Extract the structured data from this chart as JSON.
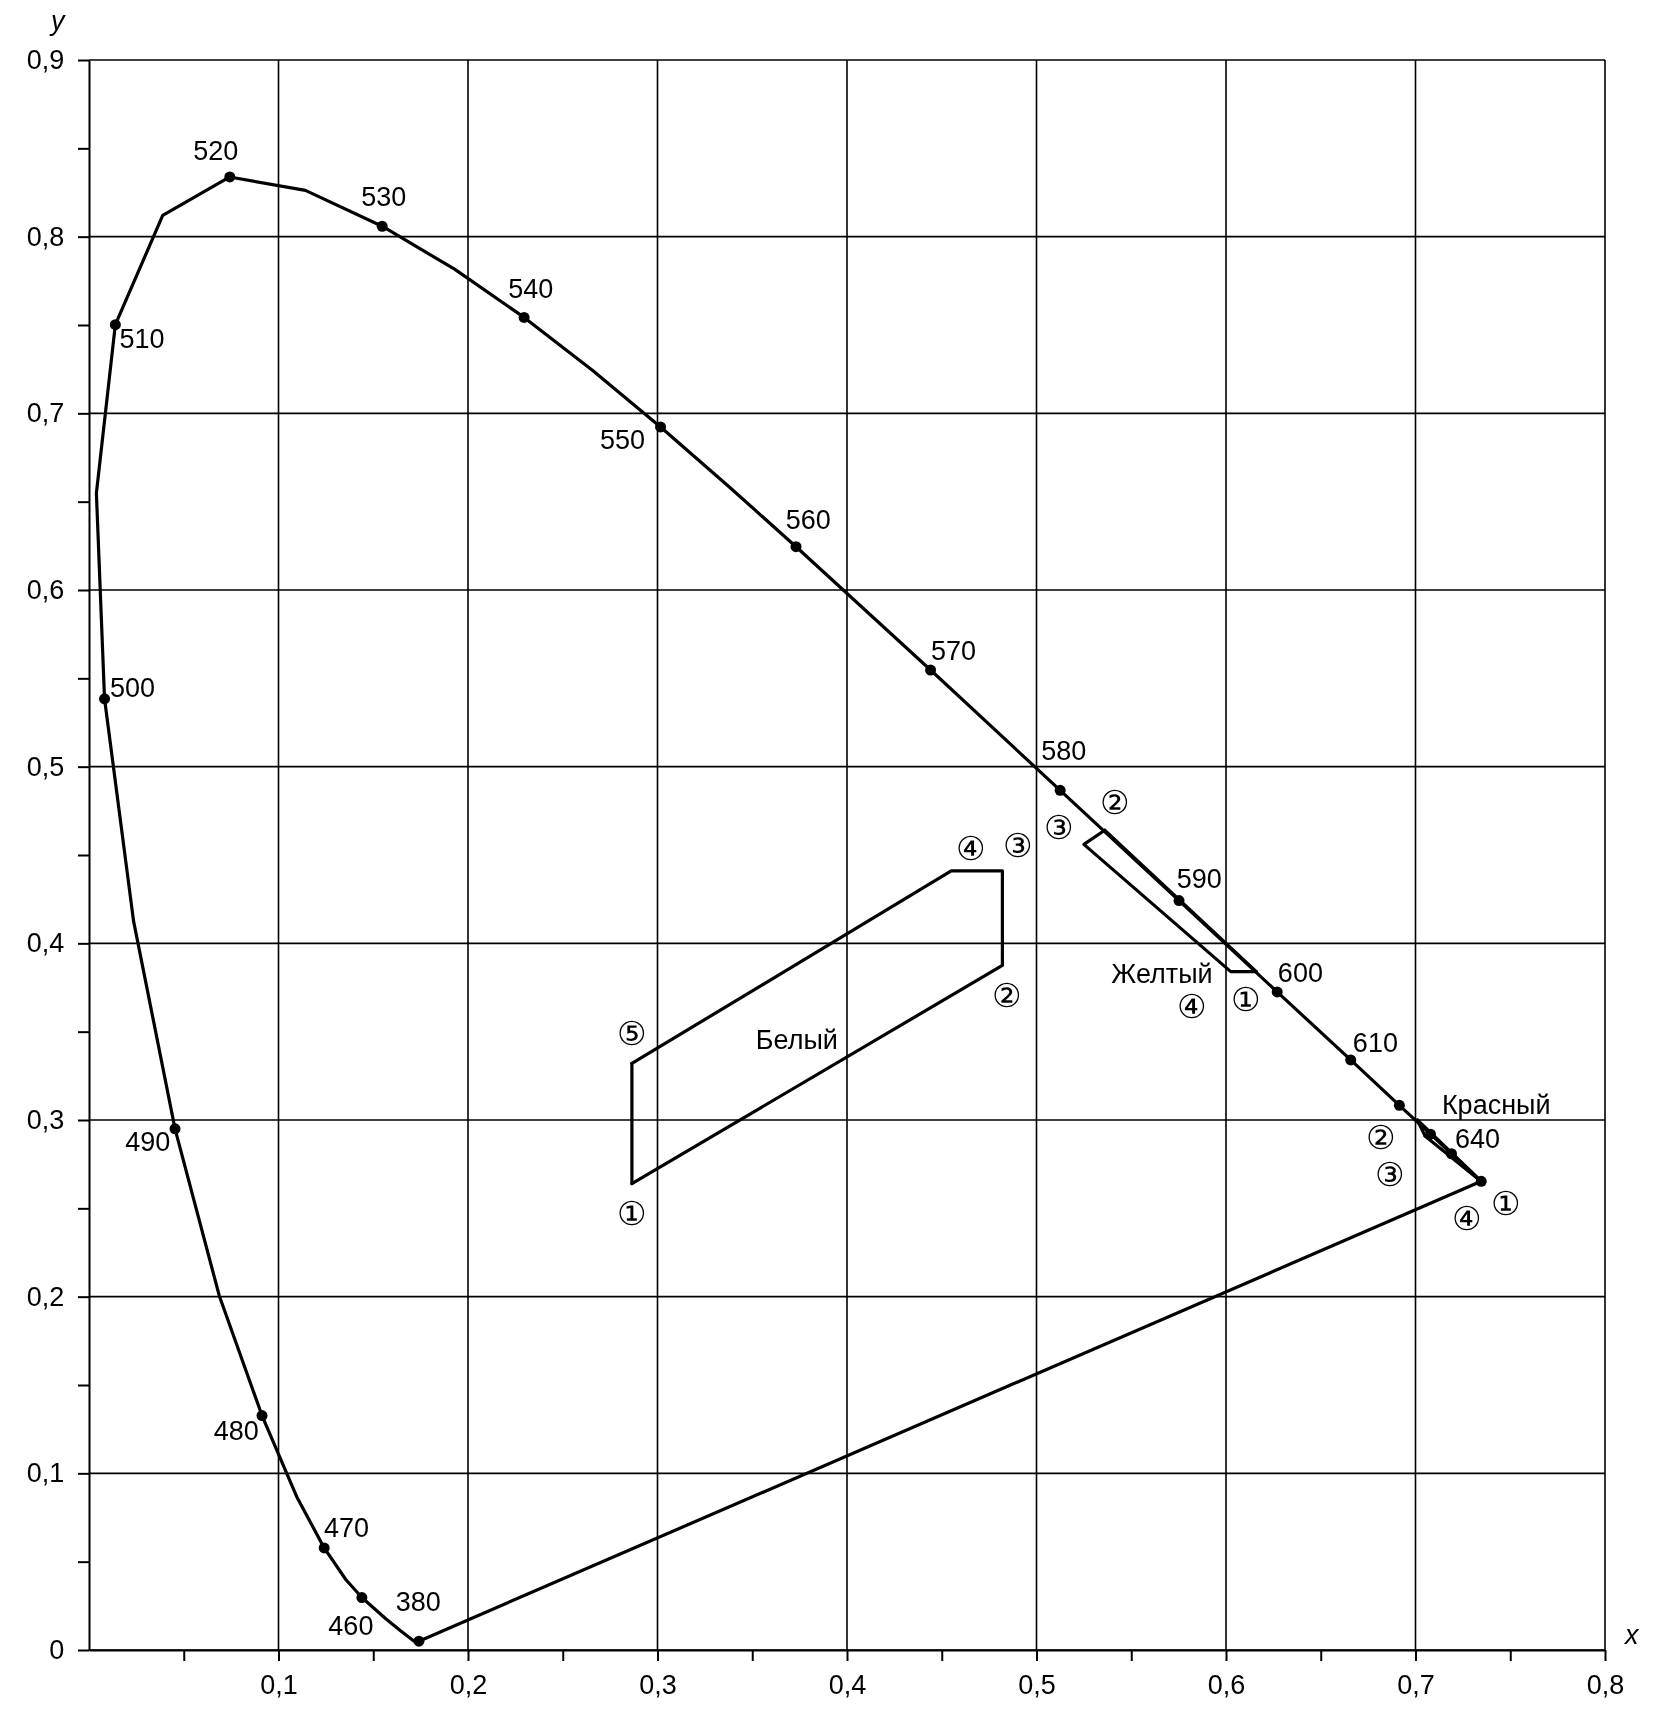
{
  "chart_data": {
    "type": "line",
    "xlabel": "x",
    "ylabel": "y",
    "xlim": [
      0,
      0.8
    ],
    "ylim": [
      0,
      0.9
    ],
    "xticks": [
      {
        "value": 0.05,
        "label": null
      },
      {
        "value": 0.1,
        "label": "0,1"
      },
      {
        "value": 0.15,
        "label": null
      },
      {
        "value": 0.2,
        "label": "0,2"
      },
      {
        "value": 0.25,
        "label": null
      },
      {
        "value": 0.3,
        "label": "0,3"
      },
      {
        "value": 0.35,
        "label": null
      },
      {
        "value": 0.4,
        "label": "0,4"
      },
      {
        "value": 0.45,
        "label": null
      },
      {
        "value": 0.5,
        "label": "0,5"
      },
      {
        "value": 0.55,
        "label": null
      },
      {
        "value": 0.6,
        "label": "0,6"
      },
      {
        "value": 0.65,
        "label": null
      },
      {
        "value": 0.7,
        "label": "0,7"
      },
      {
        "value": 0.75,
        "label": null
      },
      {
        "value": 0.8,
        "label": "0,8"
      }
    ],
    "yticks": [
      0,
      {
        "value": 0.05,
        "label": null
      },
      {
        "value": 0.1,
        "label": "0,1"
      },
      {
        "value": 0.15,
        "label": null
      },
      {
        "value": 0.2,
        "label": "0,2"
      },
      {
        "value": 0.25,
        "label": null
      },
      {
        "value": 0.3,
        "label": "0,3"
      },
      {
        "value": 0.35,
        "label": null
      },
      {
        "value": 0.4,
        "label": "0,4"
      },
      {
        "value": 0.45,
        "label": null
      },
      {
        "value": 0.5,
        "label": "0,5"
      },
      {
        "value": 0.55,
        "label": null
      },
      {
        "value": 0.6,
        "label": "0,6"
      },
      {
        "value": 0.65,
        "label": null
      },
      {
        "value": 0.7,
        "label": "0,7"
      },
      {
        "value": 0.75,
        "label": null
      },
      {
        "value": 0.8,
        "label": "0,8"
      },
      {
        "value": 0.85,
        "label": null
      },
      {
        "value": 0.9,
        "label": "0,9"
      }
    ],
    "grid": true,
    "legend": false,
    "series": [
      {
        "color": "#000000",
        "marker": "none",
        "line_style": "solid",
        "x": [
          0.1741,
          0.1714,
          0.1644,
          0.1566,
          0.144,
          0.1355,
          0.1241,
          0.1096,
          0.0913,
          0.0687,
          0.0454,
          0.0235,
          0.0082,
          0.0039,
          0.0139,
          0.0389,
          0.0743,
          0.1142,
          0.1547,
          0.1929,
          0.2296,
          0.2658,
          0.3016,
          0.3373,
          0.3731,
          0.4441,
          0.5125,
          0.5752,
          0.627,
          0.6658,
          0.6915,
          0.7079,
          0.719,
          0.73,
          0.7347
        ],
        "values": [
          0.005,
          0.0051,
          0.0109,
          0.0177,
          0.0297,
          0.0399,
          0.0578,
          0.0868,
          0.1327,
          0.2007,
          0.295,
          0.4127,
          0.5384,
          0.6548,
          0.7502,
          0.812,
          0.8338,
          0.8262,
          0.8059,
          0.7816,
          0.7543,
          0.7243,
          0.6923,
          0.6589,
          0.6245,
          0.5547,
          0.4866,
          0.4242,
          0.3725,
          0.334,
          0.3083,
          0.292,
          0.2809,
          0.27,
          0.2653
        ]
      },
      {
        "color": "#000000",
        "marker": "none",
        "line_style": "solid",
        "x": [
          0.1741,
          0.7347
        ],
        "values": [
          0.005,
          0.2653
        ]
      },
      {
        "type": "scatter",
        "color": "#000000",
        "marker": "circle",
        "x": [
          0.1741,
          0.144,
          0.1241,
          0.0913,
          0.0454,
          0.0082,
          0.0139,
          0.0743,
          0.1547,
          0.2296,
          0.3016,
          0.3731,
          0.4441,
          0.5125,
          0.5752,
          0.627,
          0.6658,
          0.6915,
          0.7079,
          0.719,
          0.7347
        ],
        "values": [
          0.005,
          0.0297,
          0.0578,
          0.1327,
          0.295,
          0.5384,
          0.7502,
          0.8338,
          0.8059,
          0.7543,
          0.6923,
          0.6245,
          0.5547,
          0.4866,
          0.4242,
          0.3725,
          0.334,
          0.3083,
          0.292,
          0.2809,
          0.2653
        ]
      },
      {
        "name": "Белый",
        "color": "#000000",
        "marker": "none",
        "line_style": "solid",
        "x": [
          0.2865,
          0.482,
          0.482,
          0.455,
          0.2865
        ],
        "values": [
          0.264,
          0.3875,
          0.441,
          0.441,
          0.332
        ]
      },
      {
        "color": "#000000",
        "marker": "none",
        "line_style": "solid",
        "x": [
          0.2865,
          0.2865
        ],
        "values": [
          0.332,
          0.264
        ]
      },
      {
        "name": "Желтый",
        "color": "#000000",
        "marker": "none",
        "line_style": "solid",
        "x": [
          0.536,
          0.525,
          0.6025,
          0.616
        ],
        "values": [
          0.464,
          0.456,
          0.384,
          0.384
        ]
      },
      {
        "color": "#000000",
        "marker": "none",
        "line_style": "solid",
        "x": [
          0.616,
          0.536
        ],
        "values": [
          0.384,
          0.464
        ]
      },
      {
        "name": "Красный",
        "color": "#000000",
        "marker": "none",
        "line_style": "solid",
        "x": [
          0.701,
          0.736,
          0.705
        ],
        "values": [
          0.3,
          0.264,
          0.291
        ]
      },
      {
        "color": "#000000",
        "marker": "none",
        "line_style": "solid",
        "x": [
          0.705,
          0.701
        ],
        "values": [
          0.291,
          0.3
        ]
      }
    ],
    "annotations": [
      {
        "text": "380",
        "x": 0.1741,
        "y": 0.005
      },
      {
        "text": "460",
        "x": 0.144,
        "y": 0.0297
      },
      {
        "text": "470",
        "x": 0.1241,
        "y": 0.0578
      },
      {
        "text": "480",
        "x": 0.0913,
        "y": 0.1327
      },
      {
        "text": "490",
        "x": 0.0454,
        "y": 0.295
      },
      {
        "text": "500",
        "x": 0.0082,
        "y": 0.5384
      },
      {
        "text": "510",
        "x": 0.0139,
        "y": 0.7502
      },
      {
        "text": "520",
        "x": 0.0743,
        "y": 0.8338
      },
      {
        "text": "530",
        "x": 0.1547,
        "y": 0.8059
      },
      {
        "text": "540",
        "x": 0.2296,
        "y": 0.7543
      },
      {
        "text": "550",
        "x": 0.3016,
        "y": 0.6923
      },
      {
        "text": "560",
        "x": 0.3731,
        "y": 0.6245
      },
      {
        "text": "570",
        "x": 0.4441,
        "y": 0.5547
      },
      {
        "text": "580",
        "x": 0.5125,
        "y": 0.4866
      },
      {
        "text": "590",
        "x": 0.5752,
        "y": 0.4242
      },
      {
        "text": "600",
        "x": 0.627,
        "y": 0.3725
      },
      {
        "text": "610",
        "x": 0.6658,
        "y": 0.334
      },
      {
        "text": "640",
        "x": 0.719,
        "y": 0.2809
      },
      {
        "text": "①",
        "x": 0.2865,
        "y": 0.264
      },
      {
        "text": "②",
        "x": 0.482,
        "y": 0.3875
      },
      {
        "text": "③",
        "x": 0.482,
        "y": 0.441
      },
      {
        "text": "④",
        "x": 0.455,
        "y": 0.441
      },
      {
        "text": "⑤",
        "x": 0.2865,
        "y": 0.332
      },
      {
        "text": "①",
        "x": 0.616,
        "y": 0.384
      },
      {
        "text": "②",
        "x": 0.536,
        "y": 0.464
      },
      {
        "text": "③",
        "x": 0.525,
        "y": 0.456
      },
      {
        "text": "④",
        "x": 0.6025,
        "y": 0.384
      },
      {
        "text": "①",
        "x": 0.736,
        "y": 0.264
      },
      {
        "text": "②",
        "x": 0.701,
        "y": 0.3
      },
      {
        "text": "③",
        "x": 0.705,
        "y": 0.291
      },
      {
        "text": "④",
        "x": 0.7347,
        "y": 0.2653
      }
    ]
  }
}
